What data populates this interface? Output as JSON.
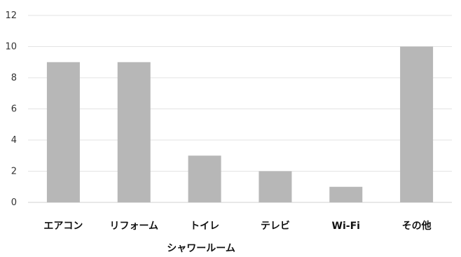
{
  "chart_data": {
    "type": "bar",
    "categories": [
      "エアコン",
      "リフォーム",
      "トイレ",
      "テレビ",
      "Wi-Fi",
      "その他"
    ],
    "values": [
      9,
      9,
      3,
      2,
      1,
      10
    ],
    "extra_category_label": "シャワールーム",
    "yticks": [
      0,
      2,
      4,
      6,
      8,
      10,
      12
    ],
    "ylim": [
      0,
      12
    ],
    "grid": true,
    "legend": "none",
    "title": "",
    "xlabel": "",
    "ylabel": "",
    "colors": {
      "bar": "#b7b7b7",
      "grid": "#e3e3e3",
      "text": "#333333"
    }
  }
}
